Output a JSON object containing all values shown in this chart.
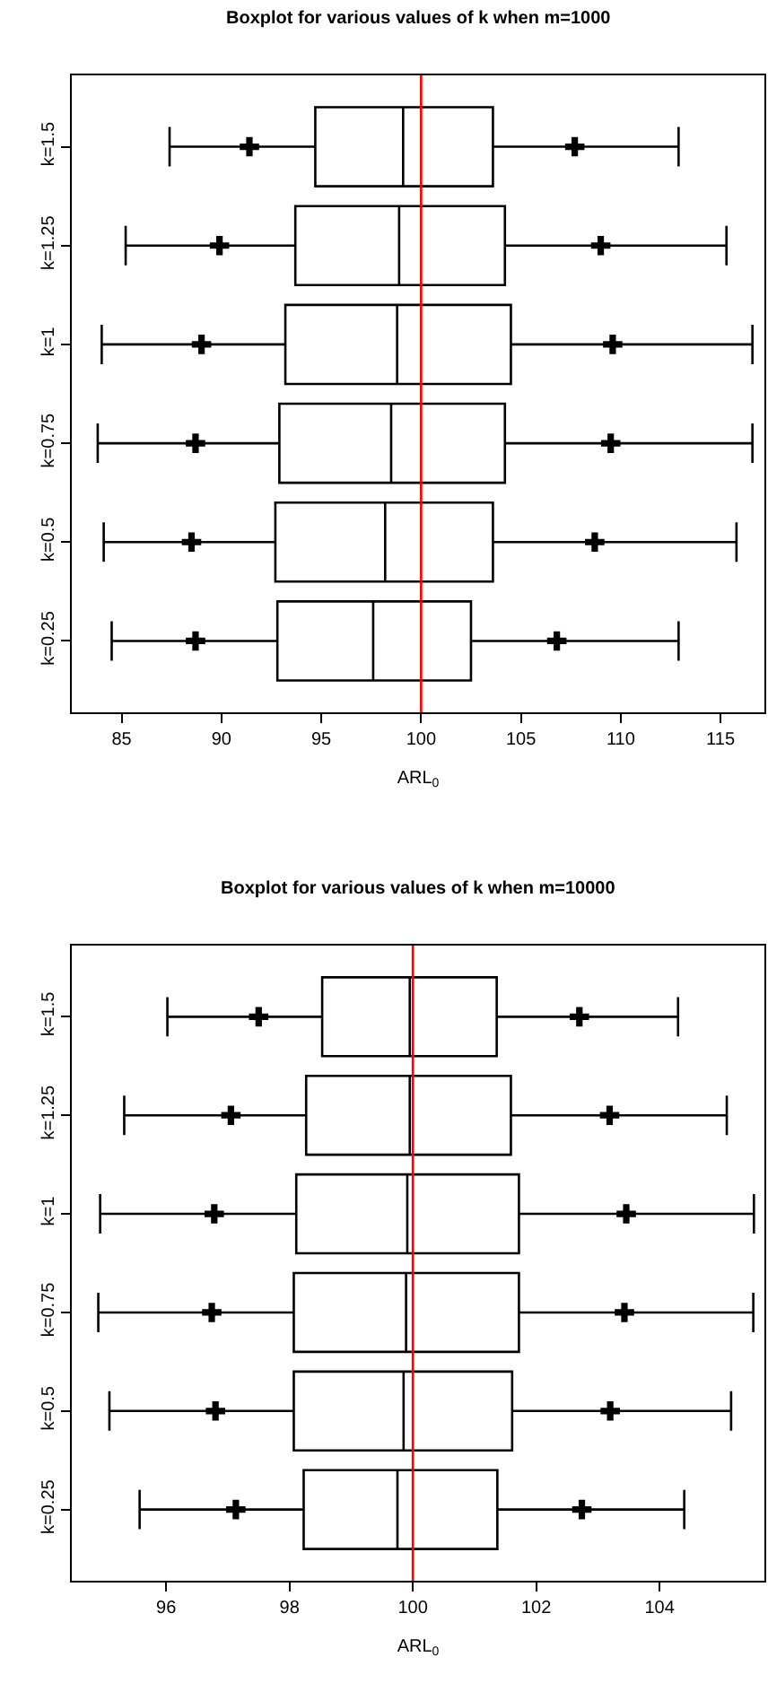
{
  "chart_data": [
    {
      "type": "box",
      "title": "Boxplot for various values of k when m=1000",
      "xlabel": "ARL$_{0}$",
      "orientation": "horizontal",
      "categories": [
        "k=1.5",
        "k=1.25",
        "k=1",
        "k=0.75",
        "k=0.5",
        "k=0.25"
      ],
      "boxes": [
        {
          "low": 87.4,
          "q1": 94.7,
          "median": 99.1,
          "q3": 103.6,
          "high": 112.9
        },
        {
          "low": 85.2,
          "q1": 93.7,
          "median": 98.9,
          "q3": 104.2,
          "high": 115.3
        },
        {
          "low": 84.0,
          "q1": 93.2,
          "median": 98.8,
          "q3": 104.5,
          "high": 116.6
        },
        {
          "low": 83.8,
          "q1": 92.9,
          "median": 98.5,
          "q3": 104.2,
          "high": 116.6
        },
        {
          "low": 84.1,
          "q1": 92.7,
          "median": 98.2,
          "q3": 103.6,
          "high": 115.8
        },
        {
          "low": 84.5,
          "q1": 92.8,
          "median": 97.6,
          "q3": 102.5,
          "high": 112.9
        }
      ],
      "series": [
        {
          "type": "scatter",
          "marker": "cross",
          "color": "#000000",
          "values": [
            91.4,
            89.9,
            89.0,
            88.7,
            88.5,
            88.7
          ]
        },
        {
          "type": "scatter",
          "marker": "cross",
          "color": "#000000",
          "values": [
            107.7,
            109.0,
            109.6,
            109.5,
            108.7,
            106.8
          ]
        }
      ],
      "xlim": [
        82.5,
        117.2
      ],
      "xticks": [
        85,
        90,
        95,
        100,
        105,
        110,
        115
      ],
      "ref_lines": [
        {
          "axis": "x",
          "value": 100,
          "color": "#ff0000"
        }
      ],
      "color": "#000000",
      "grid": false,
      "legend": false
    },
    {
      "type": "box",
      "title": "Boxplot for various values of k when m=10000",
      "xlabel": "ARL$_{0}$",
      "orientation": "horizontal",
      "categories": [
        "k=1.5",
        "k=1.25",
        "k=1",
        "k=0.75",
        "k=0.5",
        "k=0.25"
      ],
      "boxes": [
        {
          "low": 96.02,
          "q1": 98.53,
          "median": 99.95,
          "q3": 101.36,
          "high": 104.3
        },
        {
          "low": 95.32,
          "q1": 98.27,
          "median": 99.95,
          "q3": 101.59,
          "high": 105.09
        },
        {
          "low": 94.93,
          "q1": 98.11,
          "median": 99.91,
          "q3": 101.72,
          "high": 105.53
        },
        {
          "low": 94.9,
          "q1": 98.07,
          "median": 99.89,
          "q3": 101.72,
          "high": 105.52
        },
        {
          "low": 95.08,
          "q1": 98.07,
          "median": 99.85,
          "q3": 101.61,
          "high": 105.16
        },
        {
          "low": 95.57,
          "q1": 98.23,
          "median": 99.75,
          "q3": 101.37,
          "high": 104.4
        }
      ],
      "series": [
        {
          "type": "scatter",
          "marker": "cross",
          "color": "#000000",
          "values": [
            97.5,
            97.05,
            96.78,
            96.74,
            96.8,
            97.13
          ]
        },
        {
          "type": "scatter",
          "marker": "cross",
          "color": "#000000",
          "values": [
            102.7,
            103.19,
            103.46,
            103.43,
            103.2,
            102.74
          ]
        }
      ],
      "xlim": [
        94.47,
        105.7
      ],
      "xticks": [
        96,
        98,
        100,
        102,
        104
      ],
      "ref_lines": [
        {
          "axis": "x",
          "value": 100,
          "color": "#ff0000"
        }
      ],
      "color": "#000000",
      "grid": false,
      "legend": false
    }
  ]
}
